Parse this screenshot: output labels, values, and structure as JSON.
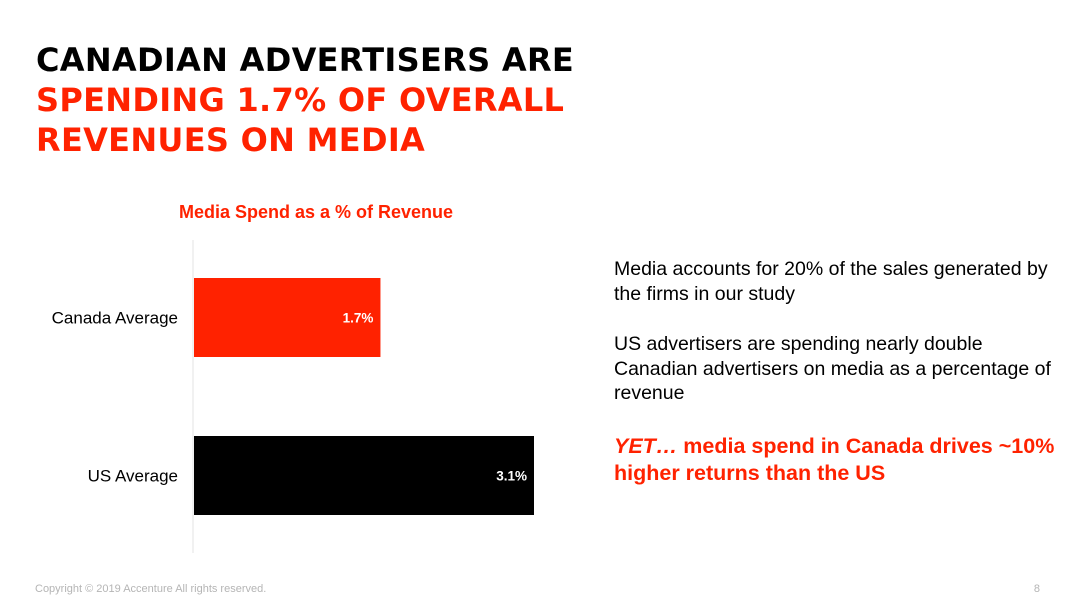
{
  "slide": {
    "title_line1": "CANADIAN ADVERTISERS ARE",
    "title_line2": "SPENDING 1.7% OF OVERALL",
    "title_line3": "REVENUES ON MEDIA",
    "bullets": [
      "Media accounts for 20% of the sales generated by the firms in our study",
      "US advertisers are spending nearly double Canadian advertisers on media as a percentage of revenue"
    ],
    "highlight_yet": "YET…",
    "highlight_rest": " media spend in Canada drives ~10% higher returns than the US",
    "footer": "Copyright © 2019 Accenture All rights reserved.",
    "page_number": "8"
  },
  "colors": {
    "accent": "#ff2200",
    "canada_bar": "#ff2200",
    "us_bar": "#000000"
  },
  "chart_data": {
    "type": "bar",
    "orientation": "horizontal",
    "title": "Media Spend as a % of Revenue",
    "categories": [
      "Canada Average",
      "US Average"
    ],
    "values": [
      1.7,
      3.1
    ],
    "value_labels": [
      "1.7%",
      "3.1%"
    ],
    "unit": "%",
    "xlim": [
      0,
      3.1
    ],
    "grid": false,
    "legend": "none"
  }
}
